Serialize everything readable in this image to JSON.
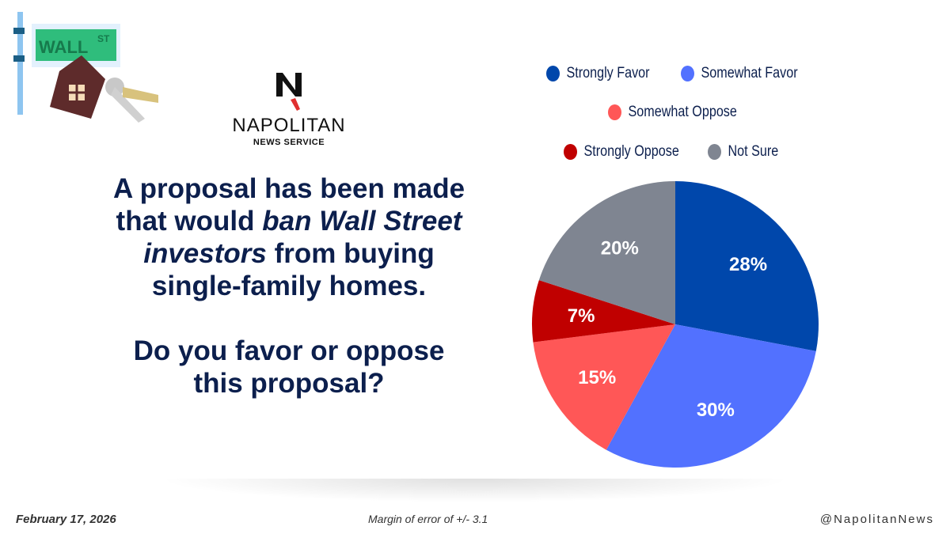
{
  "logo": {
    "name": "NAPOLITAN",
    "sub": "NEWS SERVICE",
    "letter": "N"
  },
  "sign_text": "WALL ST",
  "question": {
    "line1": "A proposal has been made",
    "line2a": "that would ",
    "line2b": "ban Wall Street",
    "line3a": "investors",
    "line3b": " from buying",
    "line4": "single-family homes.",
    "line5": "Do you favor or oppose",
    "line6": "this proposal?"
  },
  "footer": {
    "date": "February 17, 2026",
    "margin": "Margin of error of +/- 3.1",
    "handle": "@NapolitanNews"
  },
  "chart_data": {
    "type": "pie",
    "title": "",
    "categories": [
      "Strongly Favor",
      "Somewhat Favor",
      "Somewhat Oppose",
      "Strongly Oppose",
      "Not Sure"
    ],
    "values": [
      28,
      30,
      15,
      7,
      20
    ],
    "labels": [
      "28%",
      "30%",
      "15%",
      "7%",
      "20%"
    ],
    "colors": [
      "#0047ab",
      "#5271ff",
      "#ff5757",
      "#c00000",
      "#7f8591"
    ],
    "legend_placement": "top",
    "start": "top, clockwise"
  }
}
